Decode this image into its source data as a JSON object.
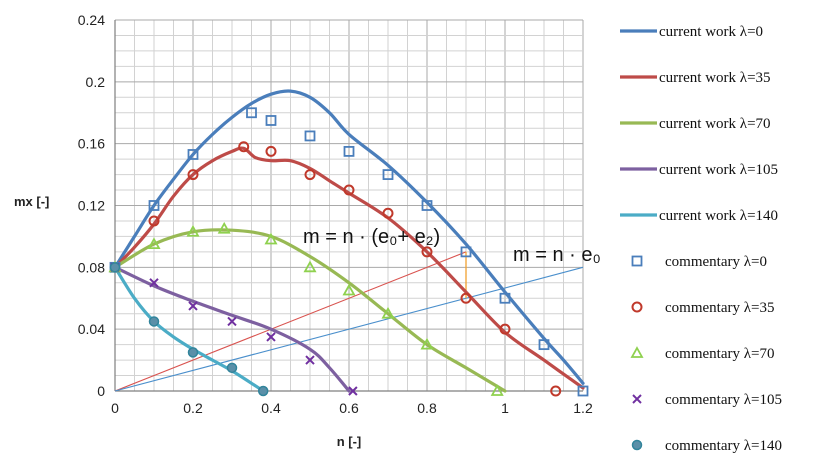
{
  "chart_data": {
    "type": "line",
    "xlabel": "n [-]",
    "ylabel": "mx [-]",
    "xlim": [
      0,
      1.2
    ],
    "ylim": [
      0,
      0.24
    ],
    "x_ticks": [
      0,
      0.2,
      0.4,
      0.6,
      0.8,
      1,
      1.2
    ],
    "x_tick_labels": [
      "0",
      "0.2",
      "0.4",
      "0.6",
      "0.8",
      "1",
      "1.2"
    ],
    "y_ticks": [
      0,
      0.04,
      0.08,
      0.12,
      0.16,
      0.2,
      0.24
    ],
    "y_tick_labels": [
      "0",
      "0.04",
      "0.08",
      "0.12",
      "0.16",
      "0.2",
      "0.24"
    ],
    "grid": true,
    "legend_position": "right",
    "series": [
      {
        "name": "current work λ=0",
        "kind": "line",
        "color": "#4a7ebb",
        "x": [
          0,
          0.05,
          0.1,
          0.15,
          0.2,
          0.25,
          0.3,
          0.35,
          0.4,
          0.45,
          0.5,
          0.55,
          0.6,
          0.7,
          0.8,
          0.9,
          1.0,
          1.1,
          1.15,
          1.2
        ],
        "y": [
          0.08,
          0.1,
          0.12,
          0.137,
          0.153,
          0.166,
          0.177,
          0.186,
          0.192,
          0.194,
          0.19,
          0.18,
          0.166,
          0.146,
          0.122,
          0.095,
          0.064,
          0.034,
          0.02,
          0.005
        ]
      },
      {
        "name": "current work λ=35",
        "kind": "line",
        "color": "#be4b48",
        "x": [
          0,
          0.05,
          0.1,
          0.15,
          0.2,
          0.25,
          0.3,
          0.33,
          0.36,
          0.4,
          0.45,
          0.5,
          0.55,
          0.6,
          0.7,
          0.8,
          0.9,
          1.0,
          1.1,
          1.2
        ],
        "y": [
          0.08,
          0.093,
          0.108,
          0.126,
          0.14,
          0.149,
          0.155,
          0.157,
          0.151,
          0.149,
          0.149,
          0.144,
          0.136,
          0.128,
          0.112,
          0.09,
          0.064,
          0.038,
          0.02,
          0.002
        ]
      },
      {
        "name": "current work λ=70",
        "kind": "line",
        "color": "#98b954",
        "x": [
          0,
          0.1,
          0.2,
          0.3,
          0.4,
          0.5,
          0.6,
          0.7,
          0.8,
          0.9,
          1.0
        ],
        "y": [
          0.08,
          0.095,
          0.103,
          0.104,
          0.1,
          0.087,
          0.07,
          0.05,
          0.03,
          0.015,
          0.0
        ]
      },
      {
        "name": "current work λ=105",
        "kind": "line",
        "color": "#7d60a0",
        "x": [
          0,
          0.1,
          0.2,
          0.3,
          0.4,
          0.5,
          0.55,
          0.6
        ],
        "y": [
          0.08,
          0.068,
          0.058,
          0.049,
          0.04,
          0.027,
          0.015,
          0.0
        ]
      },
      {
        "name": "current work λ=140",
        "kind": "line",
        "color": "#4bacc6",
        "x": [
          0,
          0.05,
          0.1,
          0.15,
          0.2,
          0.25,
          0.3,
          0.35,
          0.38
        ],
        "y": [
          0.08,
          0.06,
          0.045,
          0.035,
          0.027,
          0.02,
          0.013,
          0.005,
          0.0
        ]
      },
      {
        "name": "commentary λ=0",
        "kind": "marker",
        "marker": "square",
        "color": "#4a7ebb",
        "x": [
          0,
          0.1,
          0.2,
          0.35,
          0.4,
          0.5,
          0.6,
          0.7,
          0.8,
          0.9,
          1.0,
          1.1,
          1.2
        ],
        "y": [
          0.08,
          0.12,
          0.153,
          0.18,
          0.175,
          0.165,
          0.155,
          0.14,
          0.12,
          0.09,
          0.06,
          0.03,
          0.0
        ]
      },
      {
        "name": "commentary λ=35",
        "kind": "marker",
        "marker": "circle",
        "color": "#c0392b",
        "x": [
          0.1,
          0.2,
          0.33,
          0.4,
          0.5,
          0.6,
          0.7,
          0.8,
          0.9,
          1.0,
          1.13
        ],
        "y": [
          0.11,
          0.14,
          0.158,
          0.155,
          0.14,
          0.13,
          0.115,
          0.09,
          0.06,
          0.04,
          0.0
        ]
      },
      {
        "name": "commentary λ=70",
        "kind": "marker",
        "marker": "triangle",
        "color": "#8fd14f",
        "x": [
          0,
          0.1,
          0.2,
          0.28,
          0.4,
          0.5,
          0.6,
          0.7,
          0.8,
          0.98
        ],
        "y": [
          0.08,
          0.095,
          0.103,
          0.105,
          0.098,
          0.08,
          0.065,
          0.05,
          0.03,
          0.0
        ]
      },
      {
        "name": "commentary λ=105",
        "kind": "marker",
        "marker": "x",
        "color": "#7030a0",
        "x": [
          0,
          0.1,
          0.2,
          0.3,
          0.4,
          0.5,
          0.61
        ],
        "y": [
          0.08,
          0.07,
          0.055,
          0.045,
          0.035,
          0.02,
          0.0
        ]
      },
      {
        "name": "commentary λ=140",
        "kind": "marker",
        "marker": "dot",
        "color": "#31849b",
        "x": [
          0,
          0.1,
          0.2,
          0.3,
          0.38
        ],
        "y": [
          0.08,
          0.045,
          0.025,
          0.015,
          0.0
        ]
      }
    ],
    "reference_lines": [
      {
        "label": "m = n · (e₀+ e₂)",
        "color": "#d9534f",
        "x": [
          0,
          0.9
        ],
        "y": [
          0,
          0.09
        ]
      },
      {
        "label": "m = n · e₀",
        "color": "#4a8fcc",
        "x": [
          0,
          1.2
        ],
        "y": [
          0,
          0.08
        ]
      }
    ],
    "connector": {
      "color": "#f0a030",
      "x": [
        0.9,
        0.9
      ],
      "y": [
        0.06,
        0.09
      ]
    }
  }
}
